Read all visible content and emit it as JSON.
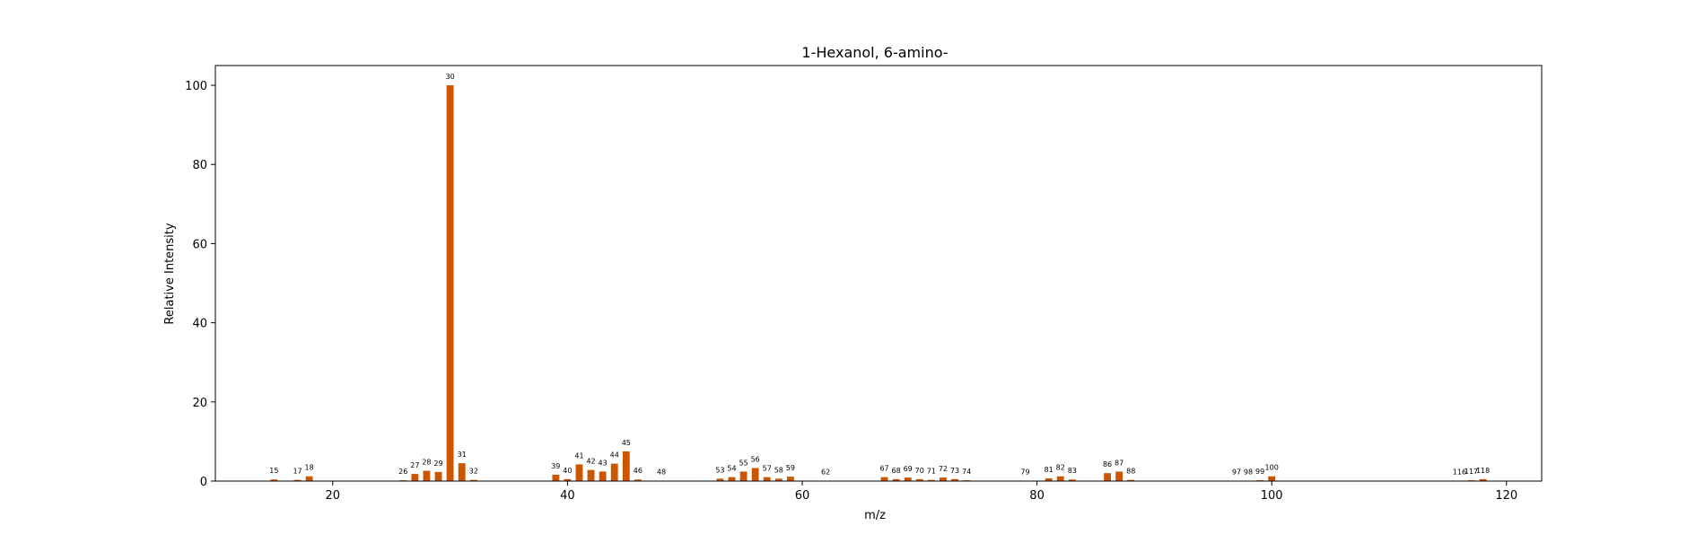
{
  "chart_data": {
    "type": "bar",
    "title": "1-Hexanol, 6-amino-",
    "xlabel": "m/z",
    "ylabel": "Relative Intensity",
    "xlim": [
      10,
      123
    ],
    "ylim": [
      0,
      105
    ],
    "xticks": [
      20,
      40,
      60,
      80,
      100,
      120
    ],
    "yticks": [
      0,
      20,
      40,
      60,
      80,
      100
    ],
    "grid": false,
    "bar_color": "#cc5500",
    "x": [
      15,
      17,
      18,
      26,
      27,
      28,
      29,
      30,
      31,
      32,
      39,
      40,
      41,
      42,
      43,
      44,
      45,
      46,
      48,
      53,
      54,
      55,
      56,
      57,
      58,
      59,
      62,
      67,
      68,
      69,
      70,
      71,
      72,
      73,
      74,
      79,
      81,
      82,
      83,
      86,
      87,
      88,
      97,
      98,
      99,
      100,
      116,
      117,
      118
    ],
    "values": [
      0.4,
      0.3,
      1.2,
      0.2,
      1.8,
      2.6,
      2.3,
      100,
      4.5,
      0.3,
      1.6,
      0.5,
      4.2,
      2.8,
      2.4,
      4.4,
      7.5,
      0.4,
      0.1,
      0.6,
      1.0,
      2.4,
      3.3,
      1.0,
      0.6,
      1.1,
      0.1,
      1.0,
      0.5,
      0.9,
      0.5,
      0.3,
      0.9,
      0.5,
      0.2,
      0.1,
      0.7,
      1.2,
      0.4,
      2.0,
      2.4,
      0.3,
      0.1,
      0.1,
      0.2,
      1.2,
      0.1,
      0.2,
      0.5
    ]
  }
}
